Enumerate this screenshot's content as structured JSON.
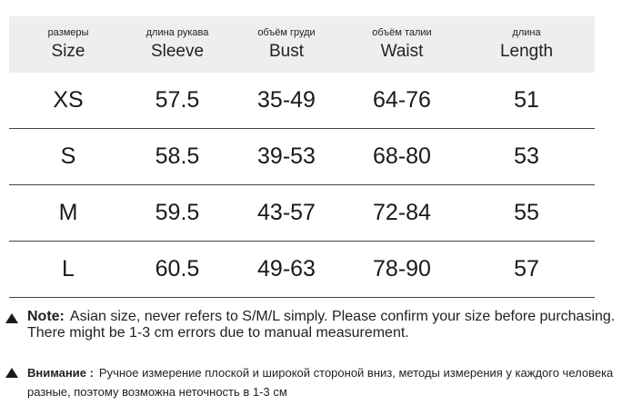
{
  "table": {
    "columns": [
      {
        "ru": "размеры",
        "en": "Size"
      },
      {
        "ru": "длина рукава",
        "en": "Sleeve"
      },
      {
        "ru": "объём груди",
        "en": "Bust"
      },
      {
        "ru": "объём талии",
        "en": "Waist"
      },
      {
        "ru": "длина",
        "en": "Length"
      }
    ],
    "rows": [
      [
        "XS",
        "57.5",
        "35-49",
        "64-76",
        "51"
      ],
      [
        "S",
        "58.5",
        "39-53",
        "68-80",
        "53"
      ],
      [
        "M",
        "59.5",
        "43-57",
        "72-84",
        "55"
      ],
      [
        "L",
        "60.5",
        "49-63",
        "78-90",
        "57"
      ]
    ]
  },
  "notes": {
    "en_label": "Note:",
    "en_text": "Asian size, never refers to S/M/L simply. Please confirm your size before purchasing. There might be 1-3 cm errors due to manual measurement.",
    "ru_label": "Внимание :",
    "ru_text": "Ручное измерение плоской и широкой стороной вниз, методы измерения у каждого человека разные, поэтому возможна неточность в 1-3 см"
  }
}
